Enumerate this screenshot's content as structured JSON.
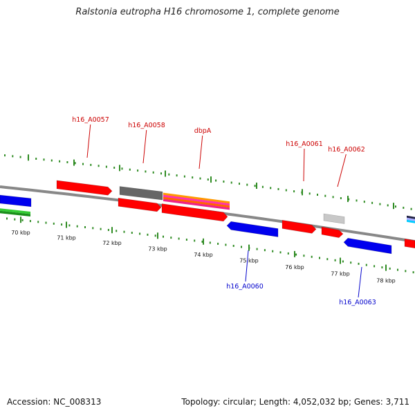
{
  "title": "Ralstonia eutropha H16 chromosome 1, complete genome",
  "footer": {
    "accession": "Accession: NC_008313",
    "topology": "Topology: circular; Length: 4,052,032 bp; Genes: 3,711"
  },
  "colors": {
    "forward_label": "#cc0000",
    "reverse_label": "#0000cc",
    "tick": "#2e8b22",
    "backbone": "#888888",
    "red_feature": "#ff0000",
    "blue_feature": "#0000ee",
    "green_feature": "#22aa22",
    "gray_feature": "#666666",
    "lightgray_feature": "#c8c8c8"
  },
  "kbp_labels": [
    "70 kbp",
    "71 kbp",
    "72 kbp",
    "73 kbp",
    "74 kbp",
    "75 kbp",
    "76 kbp",
    "77 kbp",
    "78 kbp"
  ],
  "gene_labels_forward": [
    "h16_A0057",
    "h16_A0058",
    "dbpA",
    "h16_A0061",
    "h16_A0062"
  ],
  "gene_labels_reverse": [
    "h16_A0060",
    "h16_A0063"
  ]
}
